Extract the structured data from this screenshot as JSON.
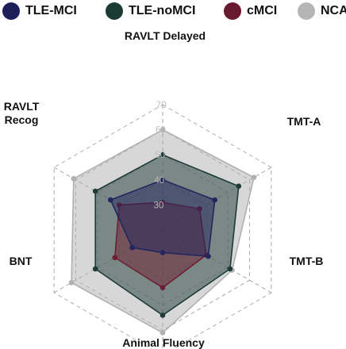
{
  "chart_data": {
    "type": "radar",
    "axes": [
      "RAVLT Delayed",
      "TMT-A",
      "TMT-B",
      "Animal Fluency",
      "BNT",
      "RAVLT\nRecog"
    ],
    "ticks": [
      30,
      40,
      50,
      60,
      70
    ],
    "rlim": [
      20,
      70
    ],
    "grid": true,
    "legend_position": "top",
    "series": [
      {
        "name": "NCA",
        "color": "#b0b0b0",
        "values": [
          60,
          62,
          52,
          61,
          62,
          61
        ]
      },
      {
        "name": "TLE-noMCI",
        "color": "#1e3b36",
        "values": [
          50,
          55,
          51,
          54,
          51,
          51
        ]
      },
      {
        "name": "cMCI",
        "color": "#6e1e34",
        "values": [
          31,
          37,
          40,
          43,
          42,
          40
        ]
      },
      {
        "name": "TLE-MCI",
        "color": "#22265c",
        "values": [
          40,
          44,
          41,
          29,
          34,
          44
        ]
      }
    ],
    "legend": [
      {
        "name": "TLE-MCI",
        "color": "#1c1f5a"
      },
      {
        "name": "TLE-noMCI",
        "color": "#1b3a34"
      },
      {
        "name": "cMCI",
        "color": "#6a1a2e"
      },
      {
        "name": "NCA",
        "color": "#b5b5b5"
      }
    ]
  }
}
